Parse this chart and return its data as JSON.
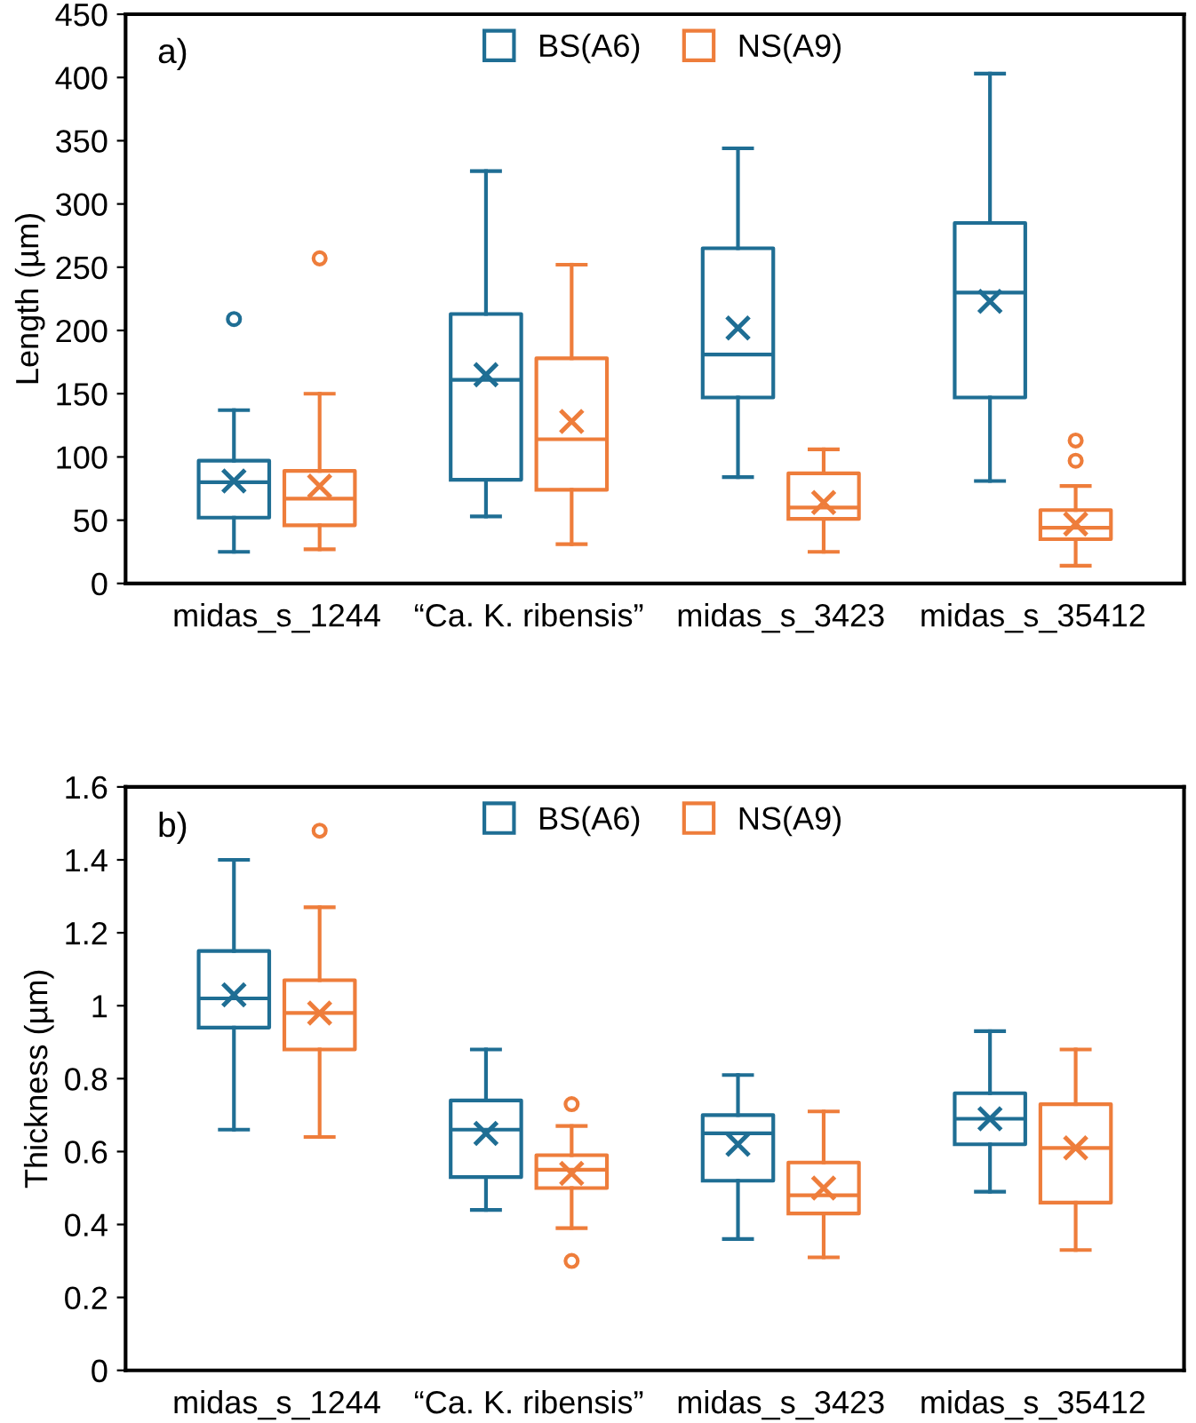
{
  "chart_data": [
    {
      "type": "box",
      "ylabel": "Length (µm)",
      "annotations": [
        "a)"
      ],
      "categories": [
        "midas_s_1244",
        "“Ca. K. ribensis”",
        "midas_s_3423",
        "midas_s_35412"
      ],
      "ylim": [
        0,
        450
      ],
      "yticks": [
        0,
        50,
        100,
        150,
        200,
        250,
        300,
        350,
        400,
        450
      ],
      "legend": "top",
      "grid": false,
      "series": [
        {
          "name": "BS(A6)",
          "color": "#1f6e94",
          "boxes": [
            {
              "low": 25,
              "q1": 52,
              "median": 80,
              "q3": 97,
              "high": 137,
              "mean": 81,
              "outliers": [
                209
              ]
            },
            {
              "low": 53,
              "q1": 82,
              "median": 161,
              "q3": 213,
              "high": 326,
              "mean": 165
            },
            {
              "low": 84,
              "q1": 147,
              "median": 181,
              "q3": 265,
              "high": 344,
              "mean": 202
            },
            {
              "low": 81,
              "q1": 147,
              "median": 230,
              "q3": 285,
              "high": 403,
              "mean": 223
            }
          ]
        },
        {
          "name": "NS(A9)",
          "color": "#ee7d3b",
          "boxes": [
            {
              "low": 27,
              "q1": 46,
              "median": 67,
              "q3": 89,
              "high": 150,
              "mean": 77,
              "outliers": [
                257
              ]
            },
            {
              "low": 31,
              "q1": 74,
              "median": 114,
              "q3": 178,
              "high": 252,
              "mean": 128
            },
            {
              "low": 25,
              "q1": 51,
              "median": 60,
              "q3": 87,
              "high": 106,
              "mean": 64
            },
            {
              "low": 14,
              "q1": 35,
              "median": 44,
              "q3": 58,
              "high": 77,
              "mean": 47,
              "outliers": [
                97,
                113
              ]
            }
          ]
        }
      ]
    },
    {
      "type": "box",
      "ylabel": "Thickness (µm)",
      "annotations": [
        "b)"
      ],
      "categories": [
        "midas_s_1244",
        "“Ca. K. ribensis”",
        "midas_s_3423",
        "midas_s_35412"
      ],
      "ylim": [
        0,
        1.6
      ],
      "yticks": [
        0,
        0.2,
        0.4,
        0.6,
        0.8,
        1,
        1.2,
        1.4,
        1.6
      ],
      "legend": "top",
      "grid": false,
      "series": [
        {
          "name": "BS(A6)",
          "color": "#1f6e94",
          "boxes": [
            {
              "low": 0.66,
              "q1": 0.94,
              "median": 1.02,
              "q3": 1.15,
              "high": 1.4,
              "mean": 1.03
            },
            {
              "low": 0.44,
              "q1": 0.53,
              "median": 0.66,
              "q3": 0.74,
              "high": 0.88,
              "mean": 0.65
            },
            {
              "low": 0.36,
              "q1": 0.52,
              "median": 0.65,
              "q3": 0.7,
              "high": 0.81,
              "mean": 0.62
            },
            {
              "low": 0.49,
              "q1": 0.62,
              "median": 0.69,
              "q3": 0.76,
              "high": 0.93,
              "mean": 0.69
            }
          ]
        },
        {
          "name": "NS(A9)",
          "color": "#ee7d3b",
          "boxes": [
            {
              "low": 0.64,
              "q1": 0.88,
              "median": 0.98,
              "q3": 1.07,
              "high": 1.27,
              "mean": 0.98,
              "outliers": [
                1.48
              ]
            },
            {
              "low": 0.39,
              "q1": 0.5,
              "median": 0.55,
              "q3": 0.59,
              "high": 0.67,
              "mean": 0.54,
              "outliers": [
                0.3,
                0.73
              ]
            },
            {
              "low": 0.31,
              "q1": 0.43,
              "median": 0.48,
              "q3": 0.57,
              "high": 0.71,
              "mean": 0.5
            },
            {
              "low": 0.33,
              "q1": 0.46,
              "median": 0.61,
              "q3": 0.73,
              "high": 0.88,
              "mean": 0.61
            }
          ]
        }
      ]
    }
  ]
}
